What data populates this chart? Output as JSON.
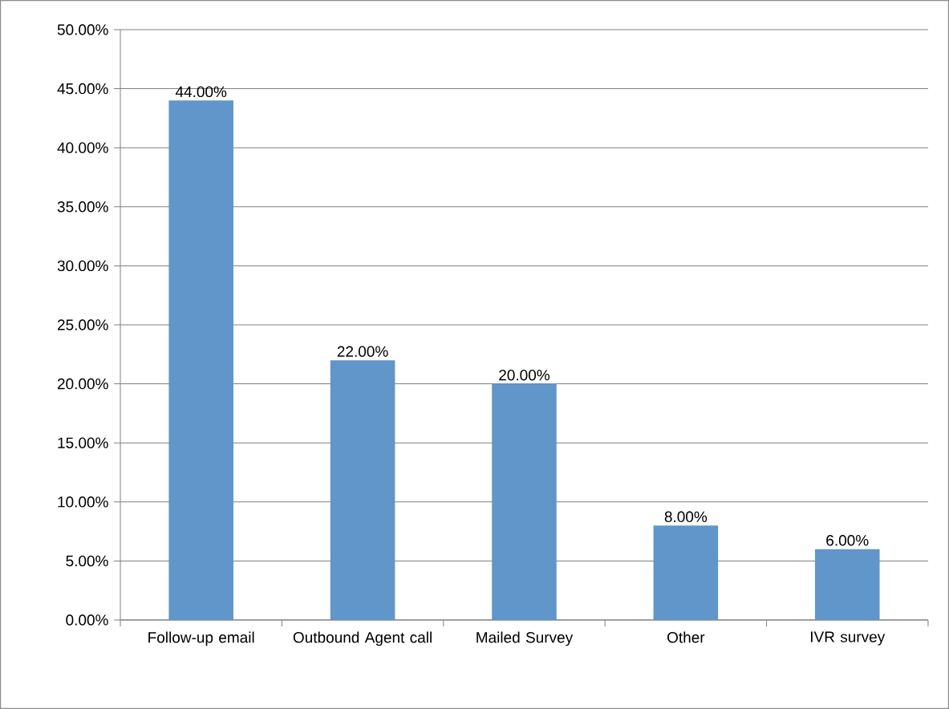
{
  "chart_data": {
    "type": "bar",
    "categories": [
      "Follow-up email",
      "Outbound Agent call",
      "Mailed Survey",
      "Other",
      "IVR survey"
    ],
    "values": [
      44,
      22,
      20,
      8,
      6
    ],
    "value_labels": [
      "44.00%",
      "22.00%",
      "20.00%",
      "8.00%",
      "6.00%"
    ],
    "color": "#6096c9",
    "ylim": [
      0,
      50
    ],
    "yticks": [
      {
        "value": 0,
        "label": "0.00%"
      },
      {
        "value": 5,
        "label": "5.00%"
      },
      {
        "value": 10,
        "label": "10.00%"
      },
      {
        "value": 15,
        "label": "15.00%"
      },
      {
        "value": 20,
        "label": "20.00%"
      },
      {
        "value": 25,
        "label": "25.00%"
      },
      {
        "value": 30,
        "label": "30.00%"
      },
      {
        "value": 35,
        "label": "35.00%"
      },
      {
        "value": 40,
        "label": "40.00%"
      },
      {
        "value": 45,
        "label": "45.00%"
      },
      {
        "value": 50,
        "label": "50.00%"
      }
    ],
    "grid": "y"
  }
}
